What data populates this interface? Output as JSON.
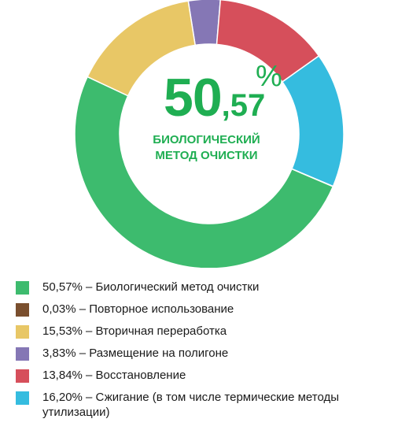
{
  "chart_data": {
    "type": "pie",
    "title": "",
    "center_label": {
      "value_int": "50",
      "value_dec": ",57",
      "unit": "%",
      "caption_line1": "БИОЛОГИЧЕСКИЙ",
      "caption_line2": "МЕТОД ОЧИСТКИ"
    },
    "slices": [
      {
        "label": "Биологический метод очистки",
        "value": 50.57,
        "color": "#3dbb6e"
      },
      {
        "label": "Повторное использование",
        "value": 0.03,
        "color": "#7a4f2e"
      },
      {
        "label": "Вторичная переработка",
        "value": 15.53,
        "color": "#e8c766"
      },
      {
        "label": "Размещение на полигоне",
        "value": 3.83,
        "color": "#8577b5"
      },
      {
        "label": "Восстановление",
        "value": 13.84,
        "color": "#d64f5b"
      },
      {
        "label": "Сжигание (в том числе термические методы утилизации)",
        "value": 16.2,
        "color": "#35bcdf"
      }
    ],
    "legend_position": "bottom"
  },
  "legend": [
    {
      "text": "50,57% – Биологический метод очистки",
      "color": "#3dbb6e"
    },
    {
      "text": "0,03% –  Повторное использование",
      "color": "#7a4f2e"
    },
    {
      "text": "15,53% – Вторичная переработка",
      "color": "#e8c766"
    },
    {
      "text": "3,83% – Размещение на полигоне",
      "color": "#8577b5"
    },
    {
      "text": "13,84% – Восстановление",
      "color": "#d64f5b"
    },
    {
      "text": "16,20% – Сжигание (в том числе термические методы утилизации)",
      "color": "#35bcdf"
    }
  ]
}
